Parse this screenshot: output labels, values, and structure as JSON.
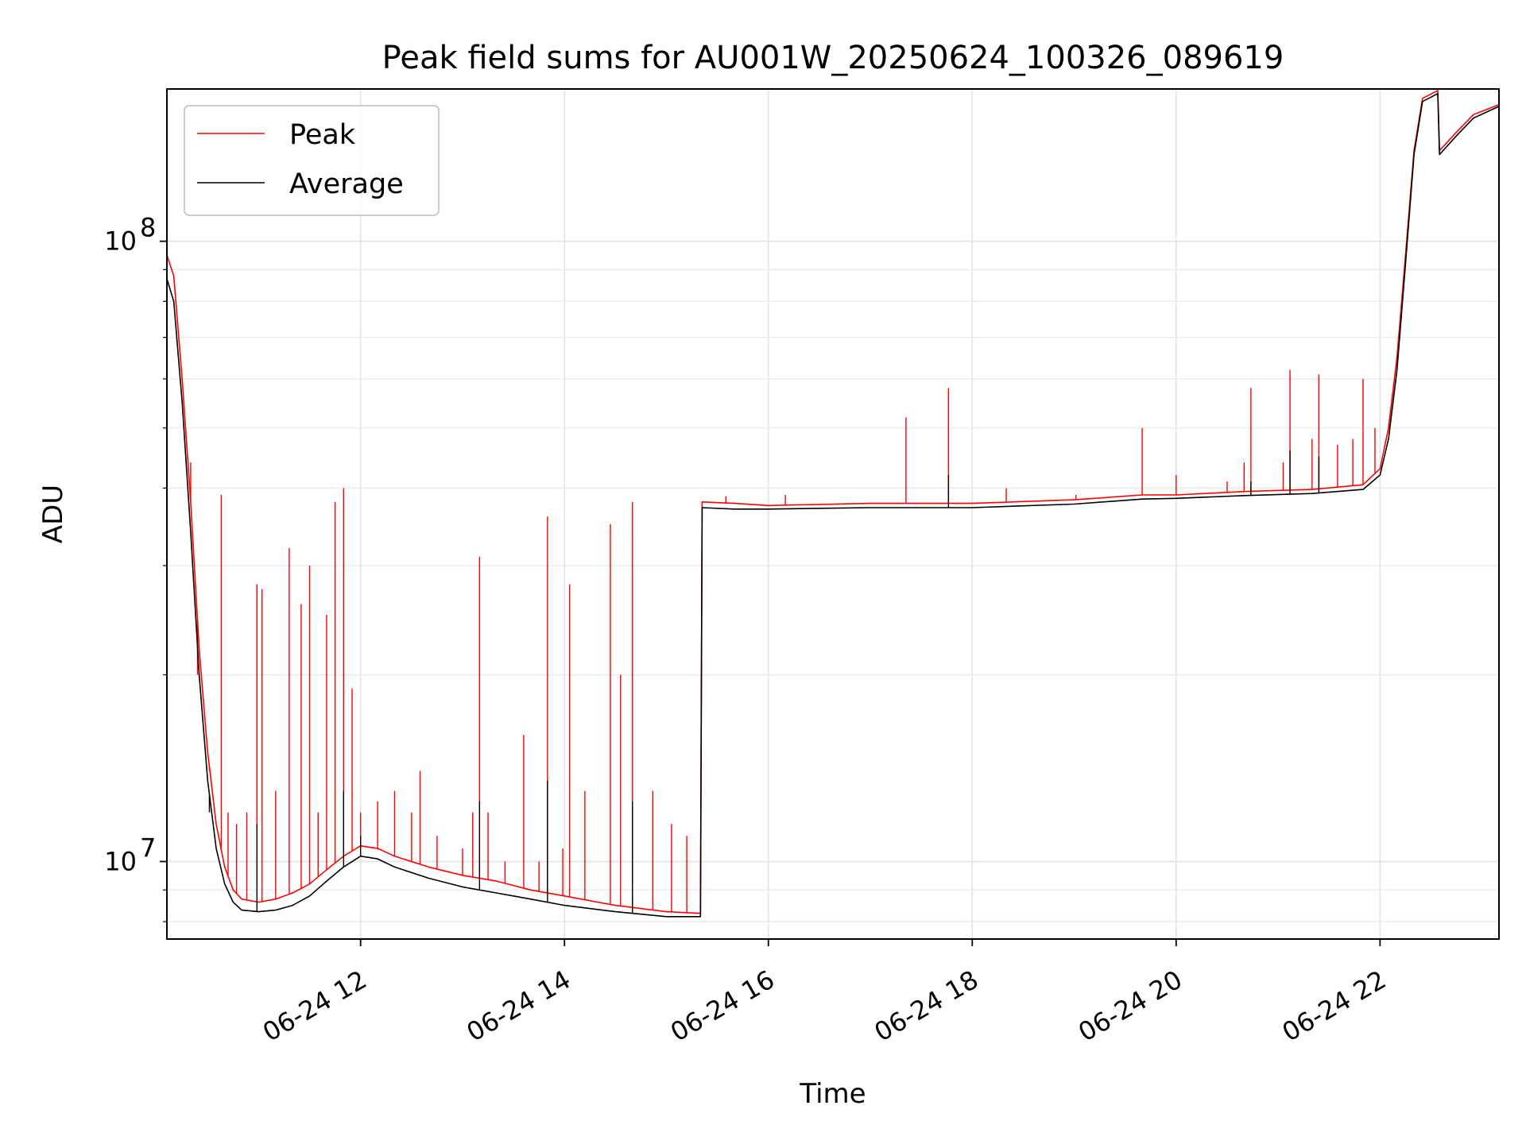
{
  "chart_data": {
    "type": "line",
    "title": "Peak field sums for AU001W_20250624_100326_089619",
    "xlabel": "Time",
    "ylabel": "ADU",
    "x_tick_labels": [
      "06-24 12",
      "06-24 14",
      "06-24 16",
      "06-24 18",
      "06-24 20",
      "06-24 22"
    ],
    "y_tick_labels": [
      {
        "base": "10",
        "exp": "7",
        "value": 10000000
      },
      {
        "base": "10",
        "exp": "8",
        "value": 100000000
      }
    ],
    "y_scale": "log",
    "xlim": [
      "2025-06-24 10:06",
      "2025-06-24 23:10"
    ],
    "ylim": [
      7500000,
      176000000
    ],
    "grid": true,
    "legend_position": "top-left",
    "colors": {
      "peak": "#ff0000",
      "average": "#000000"
    },
    "series": [
      {
        "name": "Peak",
        "color": "#ff0000",
        "points": [
          [
            "2025-06-24 10:06",
            95000000
          ],
          [
            "2025-06-24 10:10",
            88000000
          ],
          [
            "2025-06-24 10:15",
            60000000
          ],
          [
            "2025-06-24 10:20",
            38000000
          ],
          [
            "2025-06-24 10:25",
            22000000
          ],
          [
            "2025-06-24 10:30",
            15000000
          ],
          [
            "2025-06-24 10:35",
            11500000
          ],
          [
            "2025-06-24 10:40",
            9800000
          ],
          [
            "2025-06-24 10:45",
            9000000
          ],
          [
            "2025-06-24 10:50",
            8700000
          ],
          [
            "2025-06-24 11:00",
            8600000
          ],
          [
            "2025-06-24 11:10",
            8700000
          ],
          [
            "2025-06-24 11:20",
            8900000
          ],
          [
            "2025-06-24 11:30",
            9200000
          ],
          [
            "2025-06-24 11:40",
            9700000
          ],
          [
            "2025-06-24 11:50",
            10200000
          ],
          [
            "2025-06-24 12:00",
            10600000
          ],
          [
            "2025-06-24 12:10",
            10500000
          ],
          [
            "2025-06-24 12:20",
            10200000
          ],
          [
            "2025-06-24 12:40",
            9800000
          ],
          [
            "2025-06-24 13:00",
            9500000
          ],
          [
            "2025-06-24 13:20",
            9300000
          ],
          [
            "2025-06-24 13:40",
            9000000
          ],
          [
            "2025-06-24 14:00",
            8800000
          ],
          [
            "2025-06-24 14:30",
            8500000
          ],
          [
            "2025-06-24 15:00",
            8300000
          ],
          [
            "2025-06-24 15:20",
            8250000
          ],
          [
            "2025-06-24 15:21",
            38000000
          ],
          [
            "2025-06-24 15:40",
            37800000
          ],
          [
            "2025-06-24 16:00",
            37500000
          ],
          [
            "2025-06-24 17:00",
            37800000
          ],
          [
            "2025-06-24 18:00",
            37800000
          ],
          [
            "2025-06-24 19:00",
            38300000
          ],
          [
            "2025-06-24 19:40",
            39000000
          ],
          [
            "2025-06-24 20:00",
            39000000
          ],
          [
            "2025-06-24 20:40",
            39500000
          ],
          [
            "2025-06-24 21:20",
            39800000
          ],
          [
            "2025-06-24 21:50",
            40500000
          ],
          [
            "2025-06-24 22:00",
            43000000
          ],
          [
            "2025-06-24 22:05",
            50000000
          ],
          [
            "2025-06-24 22:10",
            65000000
          ],
          [
            "2025-06-24 22:15",
            95000000
          ],
          [
            "2025-06-24 22:20",
            140000000
          ],
          [
            "2025-06-24 22:25",
            170000000
          ],
          [
            "2025-06-24 22:34",
            175000000
          ],
          [
            "2025-06-24 22:35",
            140000000
          ],
          [
            "2025-06-24 22:45",
            150000000
          ],
          [
            "2025-06-24 22:55",
            160000000
          ],
          [
            "2025-06-24 23:10",
            166000000
          ]
        ],
        "spikes": [
          [
            "2025-06-24 10:20",
            44000000
          ],
          [
            "2025-06-24 10:24",
            20000000
          ],
          [
            "2025-06-24 10:31",
            14000000
          ],
          [
            "2025-06-24 10:38",
            39000000
          ],
          [
            "2025-06-24 10:42",
            12000000
          ],
          [
            "2025-06-24 10:47",
            11500000
          ],
          [
            "2025-06-24 10:53",
            12000000
          ],
          [
            "2025-06-24 10:59",
            28000000
          ],
          [
            "2025-06-24 11:02",
            27500000
          ],
          [
            "2025-06-24 11:10",
            13000000
          ],
          [
            "2025-06-24 11:18",
            32000000
          ],
          [
            "2025-06-24 11:25",
            26000000
          ],
          [
            "2025-06-24 11:30",
            30000000
          ],
          [
            "2025-06-24 11:35",
            12000000
          ],
          [
            "2025-06-24 11:40",
            25000000
          ],
          [
            "2025-06-24 11:45",
            38000000
          ],
          [
            "2025-06-24 11:50",
            40000000
          ],
          [
            "2025-06-24 11:55",
            19000000
          ],
          [
            "2025-06-24 12:00",
            12000000
          ],
          [
            "2025-06-24 12:10",
            12500000
          ],
          [
            "2025-06-24 12:20",
            13000000
          ],
          [
            "2025-06-24 12:30",
            12000000
          ],
          [
            "2025-06-24 12:35",
            14000000
          ],
          [
            "2025-06-24 12:45",
            11000000
          ],
          [
            "2025-06-24 13:00",
            10500000
          ],
          [
            "2025-06-24 13:06",
            12000000
          ],
          [
            "2025-06-24 13:10",
            31000000
          ],
          [
            "2025-06-24 13:15",
            12000000
          ],
          [
            "2025-06-24 13:25",
            10000000
          ],
          [
            "2025-06-24 13:36",
            16000000
          ],
          [
            "2025-06-24 13:45",
            10000000
          ],
          [
            "2025-06-24 13:50",
            36000000
          ],
          [
            "2025-06-24 13:59",
            10500000
          ],
          [
            "2025-06-24 14:03",
            28000000
          ],
          [
            "2025-06-24 14:12",
            13000000
          ],
          [
            "2025-06-24 14:27",
            35000000
          ],
          [
            "2025-06-24 14:33",
            20000000
          ],
          [
            "2025-06-24 14:40",
            38000000
          ],
          [
            "2025-06-24 14:52",
            13000000
          ],
          [
            "2025-06-24 15:03",
            11500000
          ],
          [
            "2025-06-24 15:12",
            11000000
          ],
          [
            "2025-06-24 15:35",
            38800000
          ],
          [
            "2025-06-24 16:10",
            39000000
          ],
          [
            "2025-06-24 17:21",
            52000000
          ],
          [
            "2025-06-24 17:46",
            58000000
          ],
          [
            "2025-06-24 18:20",
            40000000
          ],
          [
            "2025-06-24 19:01",
            39000000
          ],
          [
            "2025-06-24 19:40",
            50000000
          ],
          [
            "2025-06-24 20:00",
            42000000
          ],
          [
            "2025-06-24 20:30",
            41000000
          ],
          [
            "2025-06-24 20:40",
            44000000
          ],
          [
            "2025-06-24 20:44",
            58000000
          ],
          [
            "2025-06-24 21:03",
            44000000
          ],
          [
            "2025-06-24 21:07",
            62000000
          ],
          [
            "2025-06-24 21:20",
            48000000
          ],
          [
            "2025-06-24 21:24",
            61000000
          ],
          [
            "2025-06-24 21:35",
            47000000
          ],
          [
            "2025-06-24 21:44",
            48000000
          ],
          [
            "2025-06-24 21:50",
            60000000
          ],
          [
            "2025-06-24 21:57",
            50000000
          ]
        ]
      },
      {
        "name": "Average",
        "color": "#000000",
        "points": [
          [
            "2025-06-24 10:06",
            87000000
          ],
          [
            "2025-06-24 10:10",
            80000000
          ],
          [
            "2025-06-24 10:15",
            55000000
          ],
          [
            "2025-06-24 10:20",
            34000000
          ],
          [
            "2025-06-24 10:25",
            20000000
          ],
          [
            "2025-06-24 10:30",
            13500000
          ],
          [
            "2025-06-24 10:35",
            10500000
          ],
          [
            "2025-06-24 10:40",
            9200000
          ],
          [
            "2025-06-24 10:45",
            8600000
          ],
          [
            "2025-06-24 10:50",
            8350000
          ],
          [
            "2025-06-24 11:00",
            8300000
          ],
          [
            "2025-06-24 11:10",
            8350000
          ],
          [
            "2025-06-24 11:20",
            8500000
          ],
          [
            "2025-06-24 11:30",
            8800000
          ],
          [
            "2025-06-24 11:40",
            9300000
          ],
          [
            "2025-06-24 11:50",
            9800000
          ],
          [
            "2025-06-24 12:00",
            10200000
          ],
          [
            "2025-06-24 12:10",
            10100000
          ],
          [
            "2025-06-24 12:20",
            9800000
          ],
          [
            "2025-06-24 12:40",
            9400000
          ],
          [
            "2025-06-24 13:00",
            9100000
          ],
          [
            "2025-06-24 13:20",
            8900000
          ],
          [
            "2025-06-24 13:40",
            8700000
          ],
          [
            "2025-06-24 14:00",
            8500000
          ],
          [
            "2025-06-24 14:30",
            8300000
          ],
          [
            "2025-06-24 15:00",
            8150000
          ],
          [
            "2025-06-24 15:20",
            8150000
          ],
          [
            "2025-06-24 15:21",
            37200000
          ],
          [
            "2025-06-24 15:40",
            37000000
          ],
          [
            "2025-06-24 16:00",
            37000000
          ],
          [
            "2025-06-24 17:00",
            37200000
          ],
          [
            "2025-06-24 18:00",
            37200000
          ],
          [
            "2025-06-24 19:00",
            37700000
          ],
          [
            "2025-06-24 19:40",
            38400000
          ],
          [
            "2025-06-24 20:00",
            38500000
          ],
          [
            "2025-06-24 20:40",
            38900000
          ],
          [
            "2025-06-24 21:20",
            39200000
          ],
          [
            "2025-06-24 21:50",
            39800000
          ],
          [
            "2025-06-24 22:00",
            42000000
          ],
          [
            "2025-06-24 22:05",
            48000000
          ],
          [
            "2025-06-24 22:10",
            62000000
          ],
          [
            "2025-06-24 22:15",
            92000000
          ],
          [
            "2025-06-24 22:20",
            138000000
          ],
          [
            "2025-06-24 22:25",
            168000000
          ],
          [
            "2025-06-24 22:34",
            173000000
          ],
          [
            "2025-06-24 22:35",
            138000000
          ],
          [
            "2025-06-24 22:45",
            148000000
          ],
          [
            "2025-06-24 22:55",
            158000000
          ],
          [
            "2025-06-24 23:10",
            165000000
          ]
        ],
        "spikes": [
          [
            "2025-06-24 10:31",
            12000000
          ],
          [
            "2025-06-24 10:59",
            11500000
          ],
          [
            "2025-06-24 11:50",
            13000000
          ],
          [
            "2025-06-24 12:00",
            11000000
          ],
          [
            "2025-06-24 13:10",
            12500000
          ],
          [
            "2025-06-24 13:50",
            13500000
          ],
          [
            "2025-06-24 14:40",
            12500000
          ],
          [
            "2025-06-24 17:46",
            42000000
          ],
          [
            "2025-06-24 20:44",
            41000000
          ],
          [
            "2025-06-24 21:07",
            46000000
          ],
          [
            "2025-06-24 21:24",
            45000000
          ]
        ]
      }
    ]
  }
}
